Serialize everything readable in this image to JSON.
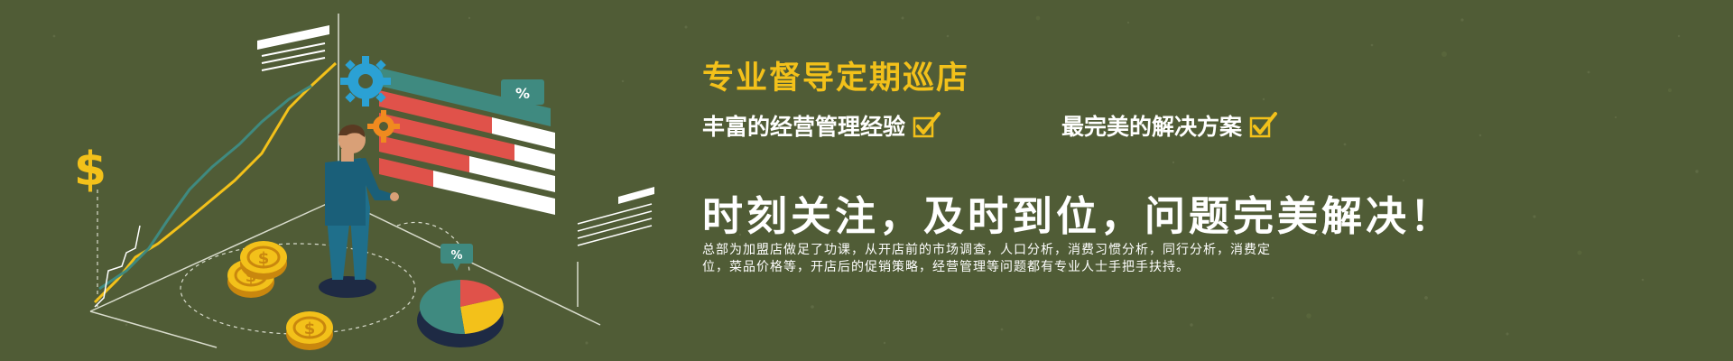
{
  "banner": {
    "headline": "专业督导定期巡店",
    "features": [
      {
        "label": "丰富的经营管理经验"
      },
      {
        "label": "最完美的解决方案"
      }
    ],
    "slogan": "时刻关注，及时到位，问题完美解决！",
    "description": "总部为加盟店做足了功课，从开店前的市场调查，人口分析，消费习惯分析，同行分析，消费定位，菜品价格等，开店后的促销策略，经营管理等问题都有专业人士手把手扶持。"
  },
  "illustration": {
    "icons": [
      "dollar-sign-icon",
      "gear-icon",
      "percent-badge-icon",
      "coin-icon",
      "pie-chart-icon"
    ],
    "percent_label": "%",
    "dollar_label": "$"
  },
  "colors": {
    "background": "#505c36",
    "accent_yellow": "#f3c11a",
    "teal": "#3f8a80",
    "red": "#e0524a",
    "white": "#ffffff",
    "figure_blue": "#1f6f8b"
  }
}
